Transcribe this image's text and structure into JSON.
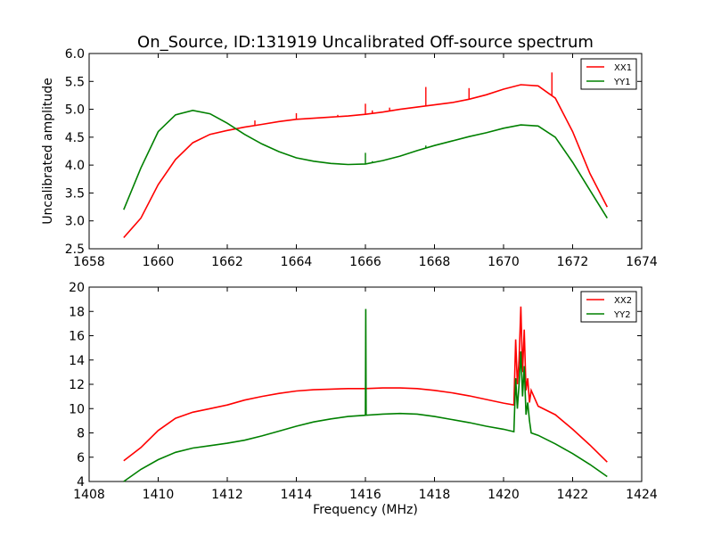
{
  "chart_data": [
    {
      "type": "line",
      "title": "On_Source, ID:131919 Uncalibrated Off-source spectrum",
      "xlabel": "",
      "ylabel": "Uncalibrated amplitude",
      "xlim": [
        1658,
        1674
      ],
      "ylim": [
        2.5,
        6.0
      ],
      "xticks": [
        "1658",
        "1660",
        "1662",
        "1664",
        "1666",
        "1668",
        "1670",
        "1672",
        "1674"
      ],
      "yticks": [
        "2.5",
        "3.0",
        "3.5",
        "4.0",
        "4.5",
        "5.0",
        "5.5",
        "6.0"
      ],
      "grid": false,
      "legend": "top-right",
      "series": [
        {
          "name": "XX1",
          "color": "#ff0000",
          "x": [
            1659.0,
            1659.5,
            1660.0,
            1660.5,
            1661.0,
            1661.5,
            1662.0,
            1662.5,
            1663.0,
            1663.5,
            1664.0,
            1664.5,
            1665.0,
            1665.5,
            1666.0,
            1666.5,
            1667.0,
            1667.5,
            1668.0,
            1668.5,
            1669.0,
            1669.5,
            1670.0,
            1670.5,
            1671.0,
            1671.5,
            1672.0,
            1672.5,
            1673.0
          ],
          "y": [
            2.7,
            3.05,
            3.65,
            4.1,
            4.4,
            4.55,
            4.62,
            4.68,
            4.73,
            4.78,
            4.82,
            4.84,
            4.86,
            4.88,
            4.91,
            4.95,
            5.0,
            5.04,
            5.08,
            5.12,
            5.18,
            5.26,
            5.36,
            5.44,
            5.42,
            5.2,
            4.6,
            3.85,
            3.25
          ],
          "spikes": [
            {
              "x": 1662.8,
              "peak": 4.8
            },
            {
              "x": 1664.0,
              "peak": 4.93
            },
            {
              "x": 1665.2,
              "peak": 4.9
            },
            {
              "x": 1666.0,
              "peak": 5.1
            },
            {
              "x": 1666.2,
              "peak": 4.98
            },
            {
              "x": 1666.7,
              "peak": 5.03
            },
            {
              "x": 1667.75,
              "peak": 5.4
            },
            {
              "x": 1669.0,
              "peak": 5.38
            },
            {
              "x": 1671.4,
              "peak": 5.66
            }
          ]
        },
        {
          "name": "YY1",
          "color": "#008000",
          "x": [
            1659.0,
            1659.5,
            1660.0,
            1660.5,
            1661.0,
            1661.5,
            1662.0,
            1662.5,
            1663.0,
            1663.5,
            1664.0,
            1664.5,
            1665.0,
            1665.5,
            1666.0,
            1666.5,
            1667.0,
            1667.5,
            1668.0,
            1668.5,
            1669.0,
            1669.5,
            1670.0,
            1670.5,
            1671.0,
            1671.5,
            1672.0,
            1672.5,
            1673.0
          ],
          "y": [
            3.2,
            3.95,
            4.6,
            4.9,
            4.98,
            4.92,
            4.75,
            4.55,
            4.38,
            4.24,
            4.13,
            4.07,
            4.03,
            4.01,
            4.02,
            4.08,
            4.16,
            4.26,
            4.35,
            4.43,
            4.51,
            4.58,
            4.66,
            4.72,
            4.7,
            4.5,
            4.05,
            3.55,
            3.05
          ],
          "spikes": [
            {
              "x": 1666.0,
              "peak": 4.22
            },
            {
              "x": 1666.2,
              "peak": 4.07
            },
            {
              "x": 1667.75,
              "peak": 4.35
            }
          ]
        }
      ]
    },
    {
      "type": "line",
      "title": "",
      "xlabel": "Frequency (MHz)",
      "ylabel": "",
      "xlim": [
        1408,
        1424
      ],
      "ylim": [
        4,
        20
      ],
      "xticks": [
        "1408",
        "1410",
        "1412",
        "1414",
        "1416",
        "1418",
        "1420",
        "1422",
        "1424"
      ],
      "yticks": [
        "4",
        "6",
        "8",
        "10",
        "12",
        "14",
        "16",
        "18",
        "20"
      ],
      "grid": false,
      "legend": "top-right",
      "series": [
        {
          "name": "XX2",
          "color": "#ff0000",
          "x": [
            1409.0,
            1409.5,
            1410.0,
            1410.5,
            1411.0,
            1411.5,
            1412.0,
            1412.5,
            1413.0,
            1413.5,
            1414.0,
            1414.5,
            1415.0,
            1415.5,
            1416.0,
            1416.5,
            1417.0,
            1417.5,
            1418.0,
            1418.5,
            1419.0,
            1419.5,
            1420.0,
            1420.3,
            1420.35,
            1420.4,
            1420.45,
            1420.5,
            1420.55,
            1420.6,
            1420.65,
            1420.7,
            1420.75,
            1420.8,
            1421.0,
            1421.5,
            1422.0,
            1422.5,
            1423.0
          ],
          "y": [
            5.7,
            6.8,
            8.2,
            9.2,
            9.7,
            10.0,
            10.3,
            10.7,
            11.0,
            11.25,
            11.45,
            11.55,
            11.6,
            11.65,
            11.65,
            11.7,
            11.7,
            11.65,
            11.5,
            11.3,
            11.05,
            10.75,
            10.45,
            10.3,
            15.7,
            12.0,
            14.0,
            18.4,
            13.0,
            16.5,
            11.5,
            12.5,
            10.5,
            11.5,
            10.2,
            9.5,
            8.3,
            7.0,
            5.6
          ]
        },
        {
          "name": "YY2",
          "color": "#008000",
          "x": [
            1409.0,
            1409.5,
            1410.0,
            1410.5,
            1411.0,
            1411.5,
            1412.0,
            1412.5,
            1413.0,
            1413.5,
            1414.0,
            1414.5,
            1415.0,
            1415.5,
            1416.0,
            1416.01,
            1416.02,
            1416.5,
            1417.0,
            1417.5,
            1418.0,
            1418.5,
            1419.0,
            1419.5,
            1420.0,
            1420.3,
            1420.35,
            1420.4,
            1420.45,
            1420.5,
            1420.55,
            1420.6,
            1420.65,
            1420.7,
            1420.75,
            1420.8,
            1421.0,
            1421.5,
            1422.0,
            1422.5,
            1423.0
          ],
          "y": [
            4.0,
            5.0,
            5.8,
            6.4,
            6.75,
            6.95,
            7.15,
            7.4,
            7.75,
            8.15,
            8.55,
            8.9,
            9.15,
            9.35,
            9.45,
            18.2,
            9.45,
            9.55,
            9.6,
            9.55,
            9.35,
            9.1,
            8.85,
            8.55,
            8.3,
            8.1,
            12.5,
            10.0,
            12.0,
            14.7,
            11.0,
            13.5,
            9.5,
            10.5,
            9.0,
            8.0,
            7.8,
            7.1,
            6.3,
            5.4,
            4.4
          ]
        }
      ]
    }
  ]
}
